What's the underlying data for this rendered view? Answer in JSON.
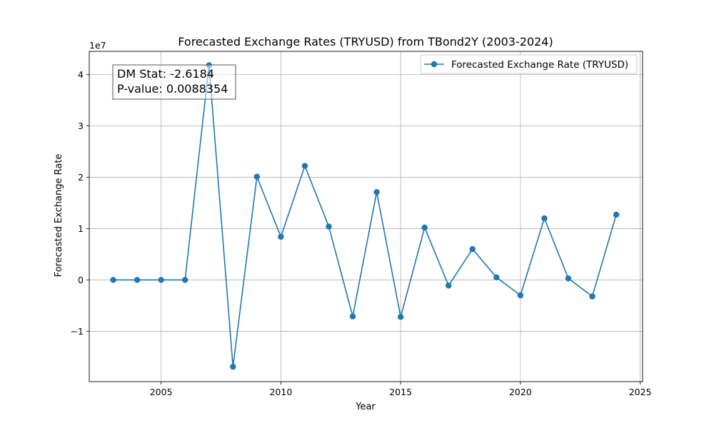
{
  "chart_data": {
    "type": "line",
    "title": "Forecasted Exchange Rates (TRYUSD) from TBond2Y (2003-2024)",
    "xlabel": "Year",
    "ylabel": "Forecasted Exchange Rate",
    "y_offset_label": "1e7",
    "xlim": [
      2002,
      2025.1
    ],
    "ylim": [
      -1.98,
      4.45
    ],
    "x_ticks": [
      2005,
      2010,
      2015,
      2020,
      2025
    ],
    "y_ticks": [
      -1,
      0,
      1,
      2,
      3,
      4
    ],
    "y_tick_labels": [
      "−1",
      "0",
      "1",
      "2",
      "3",
      "4"
    ],
    "grid": true,
    "legend_position": "top-right",
    "series": [
      {
        "name": "Forecasted Exchange Rate (TRYUSD)",
        "color": "#1f77b4",
        "marker": "circle",
        "x": [
          2003,
          2004,
          2005,
          2006,
          2007,
          2008,
          2009,
          2010,
          2011,
          2012,
          2013,
          2014,
          2015,
          2016,
          2017,
          2018,
          2019,
          2020,
          2021,
          2022,
          2023,
          2024
        ],
        "y": [
          0.0,
          0.0,
          0.0,
          0.0,
          4.18,
          -1.69,
          2.01,
          0.84,
          2.22,
          1.04,
          -0.71,
          1.71,
          -0.72,
          1.02,
          -0.11,
          0.6,
          0.05,
          -0.3,
          1.2,
          0.03,
          -0.32,
          1.27
        ]
      }
    ],
    "annotation": {
      "lines": [
        "DM Stat: -2.6184",
        "P-value: 0.0088354"
      ],
      "position": "top-left"
    }
  }
}
